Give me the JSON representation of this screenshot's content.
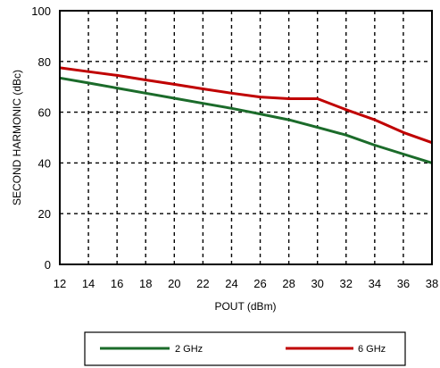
{
  "chart_data": {
    "type": "line",
    "xlabel": "POUT (dBm)",
    "ylabel": "SECOND HARMONIC (dBc)",
    "xlim": [
      12,
      38
    ],
    "ylim": [
      0,
      100
    ],
    "xticks": [
      12,
      14,
      16,
      18,
      20,
      22,
      24,
      26,
      28,
      30,
      32,
      34,
      36,
      38
    ],
    "yticks": [
      0,
      20,
      40,
      60,
      80,
      100
    ],
    "grid": true,
    "legend_position": "bottom",
    "series": [
      {
        "name": "2 GHz",
        "color": "#1b6b2a",
        "x": [
          12,
          14,
          16,
          18,
          20,
          22,
          24,
          26,
          28,
          30,
          32,
          34,
          36,
          38
        ],
        "y": [
          73.5,
          71.5,
          69.5,
          67.5,
          65.5,
          63.5,
          61.5,
          59.3,
          57,
          54,
          51,
          47,
          43.5,
          40
        ]
      },
      {
        "name": "6 GHz",
        "color": "#c00000",
        "x": [
          12,
          14,
          16,
          18,
          20,
          22,
          24,
          26,
          28,
          29,
          30,
          32,
          34,
          36,
          38
        ],
        "y": [
          77.5,
          76,
          74.5,
          72.7,
          71,
          69.2,
          67.5,
          66,
          65.3,
          65.3,
          65.3,
          61,
          57,
          52,
          48
        ]
      }
    ]
  }
}
